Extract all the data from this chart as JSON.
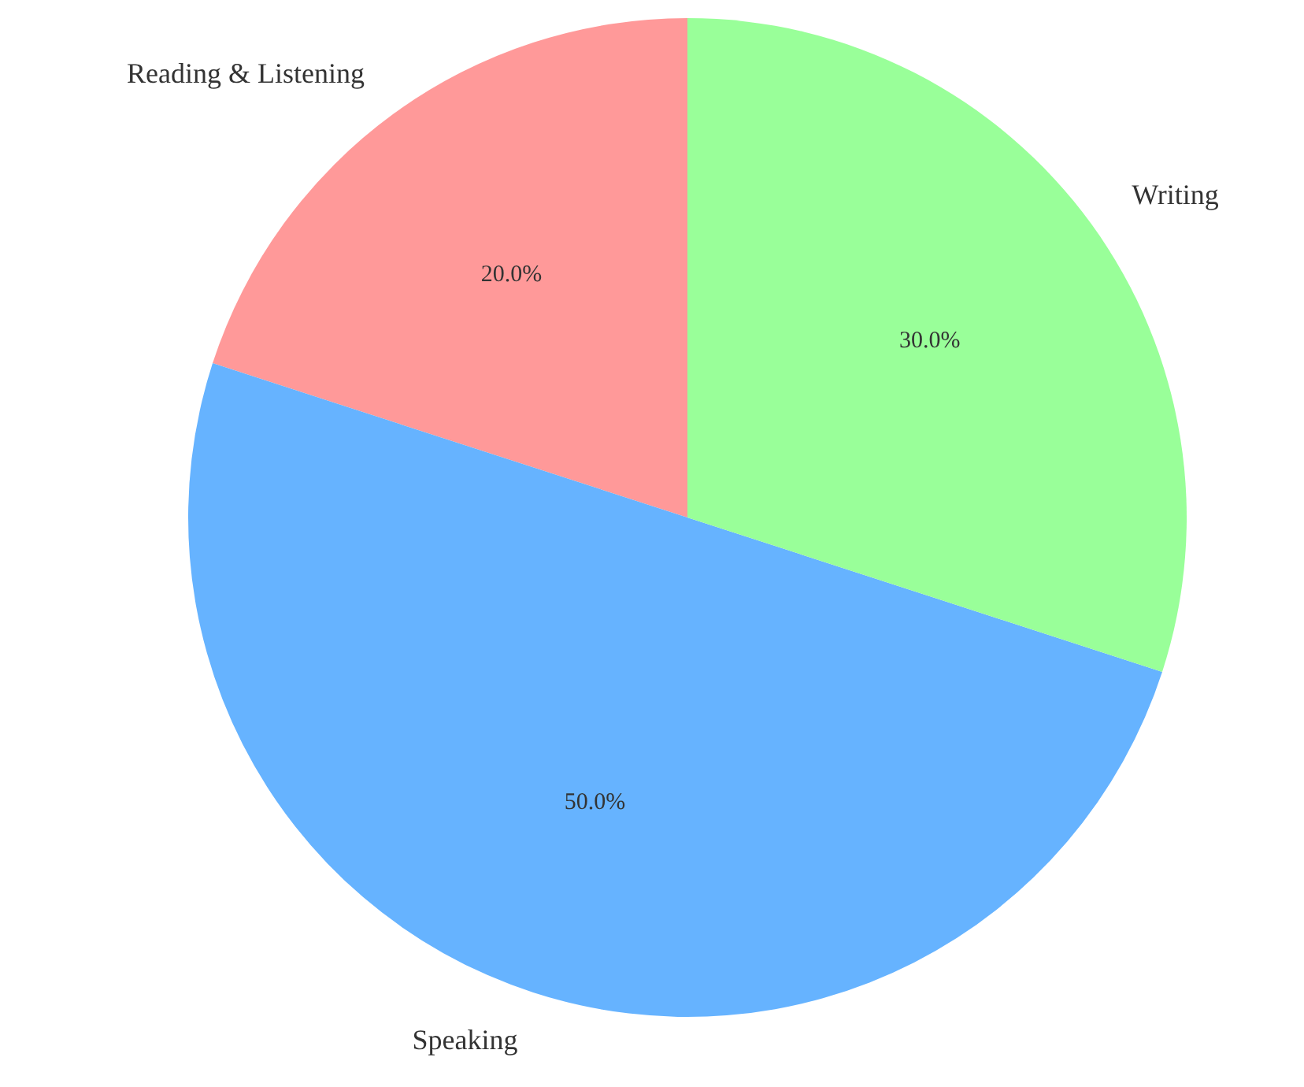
{
  "chart_data": {
    "type": "pie",
    "categories": [
      "Reading & Listening",
      "Speaking",
      "Writing"
    ],
    "values": [
      20,
      50,
      30
    ],
    "colors": [
      "#ff9999",
      "#66b3ff",
      "#99ff99"
    ],
    "value_labels": [
      "20.0%",
      "50.0%",
      "30.0%"
    ]
  }
}
